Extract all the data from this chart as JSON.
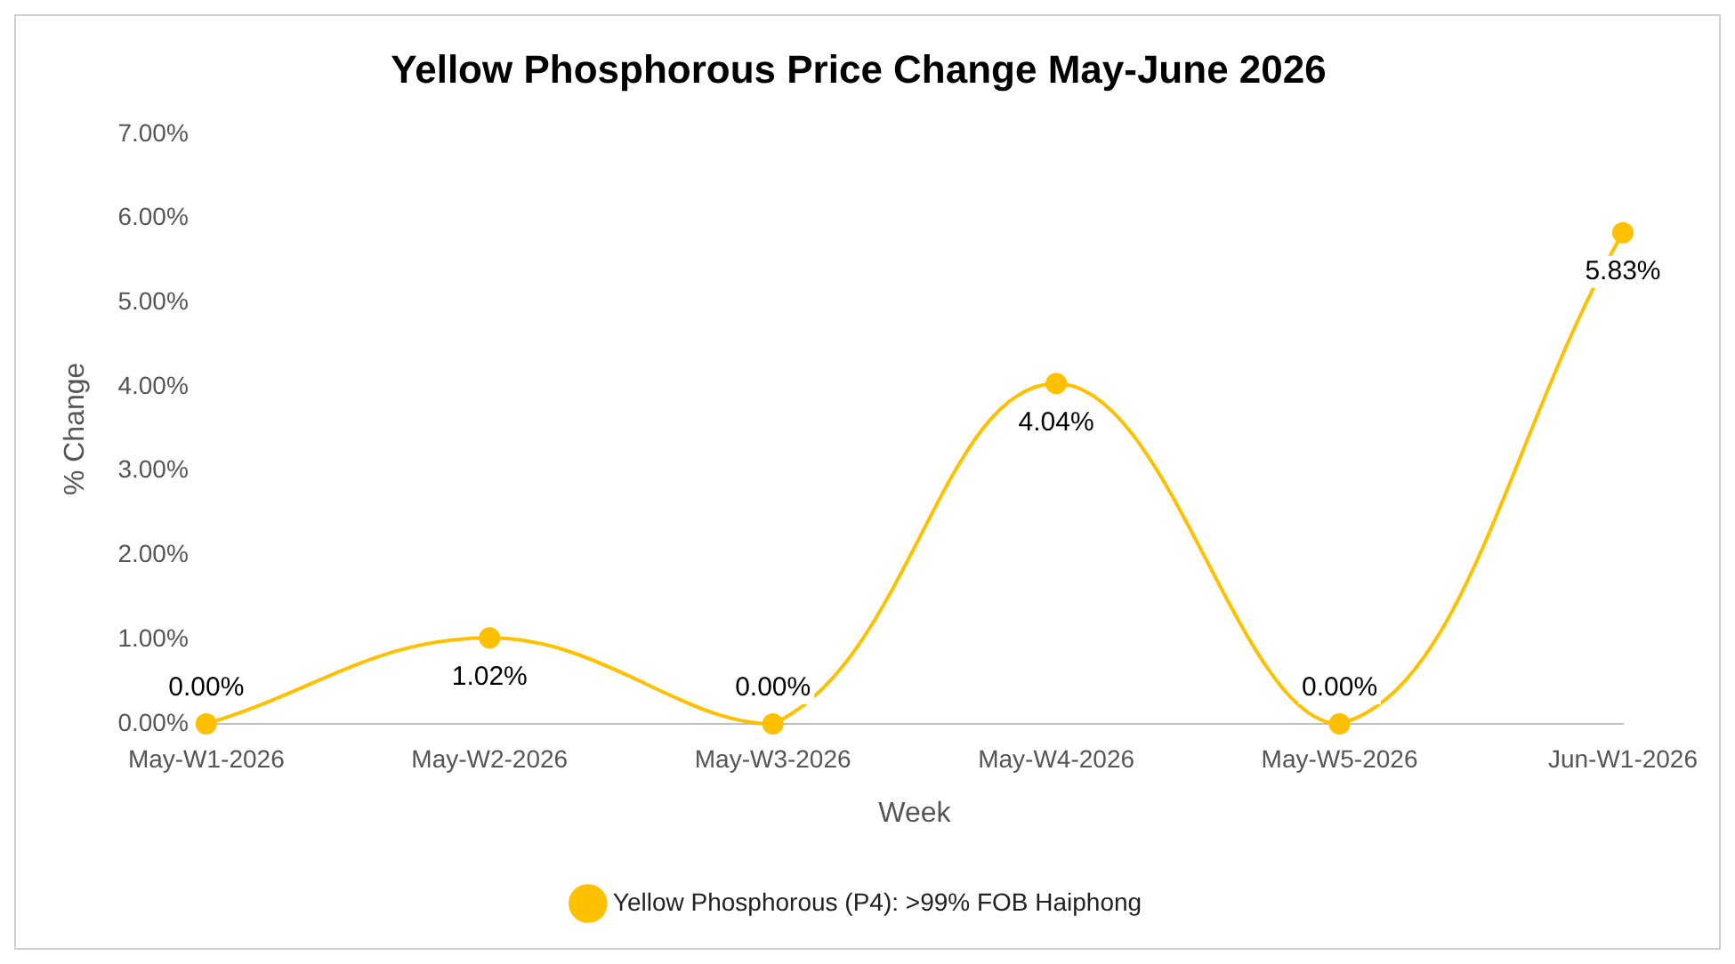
{
  "chart_data": {
    "type": "line",
    "title": "Yellow Phosphorous Price Change May-June 2026",
    "xlabel": "Week",
    "ylabel": "% Change",
    "categories": [
      "May-W1-2026",
      "May-W2-2026",
      "May-W3-2026",
      "May-W4-2026",
      "May-W5-2026",
      "Jun-W1-2026"
    ],
    "series": [
      {
        "name": "Yellow Phosphorous (P4): >99% FOB Haiphong",
        "color": "#ffc000",
        "values": [
          0,
          1.02,
          0,
          4.04,
          0,
          5.83
        ],
        "value_labels": [
          "0.00%",
          "1.02%",
          "0.00%",
          "4.04%",
          "0.00%",
          "5.83%"
        ]
      }
    ],
    "ylim": [
      0,
      7
    ],
    "yticks": [
      {
        "value": 0,
        "label": "0.00%"
      },
      {
        "value": 1,
        "label": "1.00%"
      },
      {
        "value": 2,
        "label": "2.00%"
      },
      {
        "value": 3,
        "label": "3.00%"
      },
      {
        "value": 4,
        "label": "4.00%"
      },
      {
        "value": 5,
        "label": "5.00%"
      },
      {
        "value": 6,
        "label": "6.00%"
      },
      {
        "value": 7,
        "label": "7.00%"
      }
    ],
    "grid": false,
    "legend": "bottom",
    "marker": "circle",
    "line_style": "solid"
  }
}
